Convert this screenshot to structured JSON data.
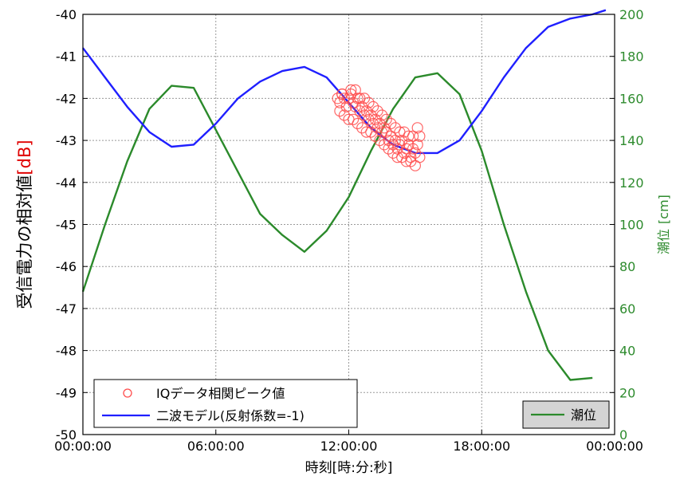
{
  "chart_data": {
    "type": "line",
    "xlabel": "時刻[時:分:秒]",
    "ylabel": {
      "main": "受信電力の相対値",
      "unit": "[dB]"
    },
    "y2label": {
      "main": "潮位",
      "unit": "[cm]"
    },
    "x_ticks": [
      "00:00:00",
      "06:00:00",
      "12:00:00",
      "18:00:00",
      "00:00:00"
    ],
    "x_tick_hours": [
      0,
      6,
      12,
      18,
      24
    ],
    "xlim_hours": [
      0,
      24
    ],
    "ylim": [
      -50,
      -40
    ],
    "y_ticks": [
      -50,
      -49,
      -48,
      -47,
      -46,
      -45,
      -44,
      -43,
      -42,
      -41,
      -40
    ],
    "y_tick_labels": [
      "-50",
      "-49",
      "-48",
      "-47",
      "-46",
      "-45",
      "-44",
      "-43",
      "-42",
      "-41",
      "-40"
    ],
    "y2lim": [
      0,
      200
    ],
    "y2_ticks": [
      0,
      20,
      40,
      60,
      80,
      100,
      120,
      140,
      160,
      180,
      200
    ],
    "y2_tick_labels": [
      "0",
      "20",
      "40",
      "60",
      "80",
      "100",
      "120",
      "140",
      "160",
      "180",
      "200"
    ],
    "grid": true,
    "colors": {
      "scatter": "#ff4d4d",
      "model": "#1f1fff",
      "tide": "#2b8a2b",
      "left_axis": "#000000",
      "right_axis": "#2e8b2e",
      "unit_red": "#e00000",
      "grid": "#9a9a9a"
    },
    "legend_left": {
      "placement": "bottom-left",
      "entries": [
        {
          "label": "IQデータ相関ピーク値",
          "marker": "circle",
          "series": "scatter"
        },
        {
          "label": "二波モデル(反射係数=-1)",
          "marker": "line",
          "series": "model"
        }
      ]
    },
    "legend_right": {
      "placement": "bottom-right",
      "entries": [
        {
          "label": "潮位",
          "marker": "line",
          "series": "tide"
        }
      ]
    },
    "series": [
      {
        "name": "IQデータ相関ピーク値",
        "kind": "scatter",
        "axis": "left",
        "x_hours": [
          11.5,
          11.6,
          11.7,
          11.8,
          11.9,
          12.0,
          12.1,
          12.2,
          12.3,
          12.4,
          12.5,
          12.6,
          12.7,
          12.8,
          12.9,
          13.0,
          13.1,
          13.2,
          13.3,
          13.4,
          13.5,
          13.6,
          13.7,
          13.8,
          13.9,
          14.0,
          14.1,
          14.2,
          14.3,
          14.4,
          14.5,
          14.6,
          14.7,
          14.8,
          14.9,
          15.0,
          15.1,
          15.2,
          11.6,
          11.8,
          12.0,
          12.2,
          12.4,
          12.6,
          12.8,
          13.0,
          13.2,
          13.4,
          13.6,
          13.8,
          14.0,
          14.2,
          14.4,
          14.6,
          14.8,
          15.0,
          15.2,
          11.7,
          12.1,
          12.5,
          12.9,
          13.3,
          13.7,
          14.1,
          14.5,
          14.9,
          12.3,
          12.7,
          13.1,
          13.5,
          13.9,
          14.3,
          14.7,
          15.1
        ],
        "y": [
          -42.0,
          -42.1,
          -41.9,
          -42.0,
          -42.2,
          -42.0,
          -41.8,
          -42.1,
          -42.2,
          -42.0,
          -42.3,
          -42.2,
          -42.4,
          -42.3,
          -42.5,
          -42.4,
          -42.6,
          -42.5,
          -42.7,
          -42.6,
          -42.8,
          -42.7,
          -42.8,
          -43.0,
          -42.9,
          -43.1,
          -43.0,
          -43.2,
          -43.1,
          -43.0,
          -43.3,
          -43.2,
          -43.1,
          -43.4,
          -43.2,
          -43.3,
          -43.1,
          -42.9,
          -42.3,
          -42.4,
          -42.5,
          -42.5,
          -42.6,
          -42.7,
          -42.8,
          -42.8,
          -42.9,
          -43.0,
          -43.1,
          -43.2,
          -43.3,
          -43.4,
          -43.4,
          -43.5,
          -43.5,
          -43.6,
          -43.4,
          -41.9,
          -41.9,
          -42.0,
          -42.1,
          -42.3,
          -42.5,
          -42.7,
          -42.8,
          -42.9,
          -41.8,
          -42.0,
          -42.2,
          -42.4,
          -42.6,
          -42.8,
          -42.9,
          -42.7
        ]
      },
      {
        "name": "二波モデル(反射係数=-1)",
        "kind": "line",
        "axis": "left",
        "x_hours": [
          0,
          1,
          2,
          3,
          4,
          5,
          6,
          7,
          8,
          9,
          10,
          11,
          12,
          13,
          14,
          15,
          16,
          17,
          18,
          19,
          20,
          21,
          22,
          23,
          23.6
        ],
        "y": [
          -40.8,
          -41.5,
          -42.2,
          -42.8,
          -43.15,
          -43.1,
          -42.6,
          -42.0,
          -41.6,
          -41.35,
          -41.25,
          -41.5,
          -42.1,
          -42.7,
          -43.1,
          -43.3,
          -43.3,
          -43.0,
          -42.3,
          -41.5,
          -40.8,
          -40.3,
          -40.1,
          -40.0,
          -39.9
        ]
      },
      {
        "name": "潮位",
        "kind": "line",
        "axis": "right",
        "x_hours": [
          0,
          1,
          2,
          3,
          4,
          5,
          6,
          7,
          8,
          9,
          10,
          11,
          12,
          13,
          14,
          15,
          16,
          17,
          18,
          19,
          20,
          21,
          22,
          23
        ],
        "y": [
          68,
          100,
          130,
          155,
          166,
          165,
          145,
          125,
          105,
          95,
          87,
          97,
          113,
          135,
          155,
          170,
          172,
          162,
          135,
          100,
          68,
          40,
          26,
          27
        ]
      }
    ]
  }
}
